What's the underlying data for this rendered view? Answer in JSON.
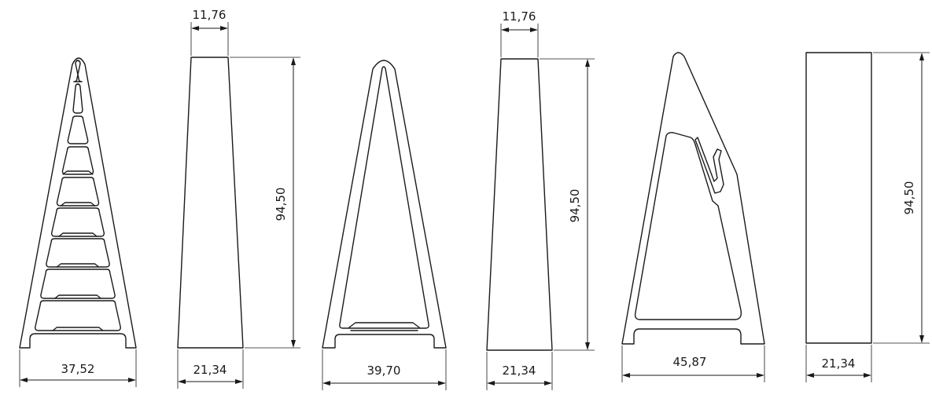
{
  "dimensions": {
    "view1_width": "37,52",
    "view2_top": "11,76",
    "view2_bottom": "21,34",
    "view2_height": "94,50",
    "view3_width": "39,70",
    "view4_top": "11,76",
    "view4_bottom": "21,34",
    "view4_height": "94,50",
    "view5_width": "45,87",
    "view6_bottom": "21,34",
    "view6_height": "94,50"
  }
}
